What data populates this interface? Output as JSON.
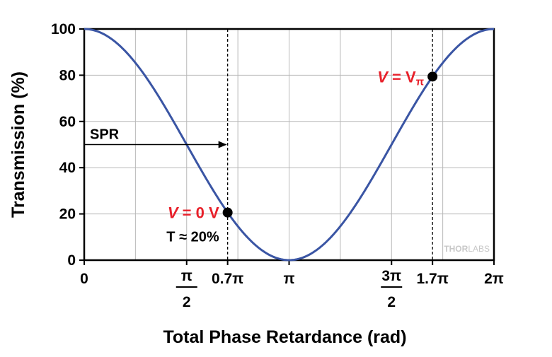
{
  "chart_data": {
    "type": "line",
    "title": "",
    "xlabel": "Total Phase Retardance (rad)",
    "ylabel": "Transmission (%)",
    "xlim": [
      0,
      2
    ],
    "x_unit": "π",
    "ylim": [
      0,
      100
    ],
    "grid": true,
    "colors": {
      "curve": "#3a55a4",
      "accent": "#e8202a"
    },
    "yticks": [
      {
        "value": 0,
        "label": "0"
      },
      {
        "value": 20,
        "label": "20"
      },
      {
        "value": 40,
        "label": "40"
      },
      {
        "value": 60,
        "label": "60"
      },
      {
        "value": 80,
        "label": "80"
      },
      {
        "value": 100,
        "label": "100"
      }
    ],
    "xticks": [
      {
        "value": 0,
        "label": "0"
      },
      {
        "value": 0.5,
        "num": "π",
        "den": "2"
      },
      {
        "value": 0.7,
        "label": "0.7π"
      },
      {
        "value": 1,
        "label": "π"
      },
      {
        "value": 1.5,
        "num": "3π",
        "den": "2"
      },
      {
        "value": 1.7,
        "label": "1.7π"
      },
      {
        "value": 2,
        "label": "2π"
      }
    ],
    "series": [
      {
        "values_function": "T = 100·cos²(x·π/2)",
        "x": [
          0,
          0.1,
          0.2,
          0.3,
          0.4,
          0.5,
          0.6,
          0.7,
          0.8,
          0.9,
          1.0,
          1.1,
          1.2,
          1.3,
          1.4,
          1.5,
          1.6,
          1.7,
          1.8,
          1.9,
          2.0
        ],
        "y": [
          100,
          97.6,
          90.5,
          79.4,
          65.5,
          50,
          34.5,
          20.6,
          9.5,
          2.4,
          0,
          2.4,
          9.5,
          20.6,
          34.5,
          50,
          65.5,
          79.4,
          90.5,
          97.6,
          100
        ]
      }
    ],
    "points": [
      {
        "x": 0.7,
        "y": 20.6,
        "label_v": "V",
        "label_rest": " = 0 V",
        "sublabel": "T ≈ 20%"
      },
      {
        "x": 1.7,
        "y": 79.4,
        "label_v": "V",
        "label_rest": " = V",
        "label_sub": "π"
      }
    ],
    "vlines": [
      0.7,
      1.7
    ],
    "arrow": {
      "label": "SPR",
      "from_x": 0,
      "to_x": 0.7,
      "y": 50
    },
    "watermark": {
      "left": "THOR",
      "right": "LABS"
    }
  }
}
